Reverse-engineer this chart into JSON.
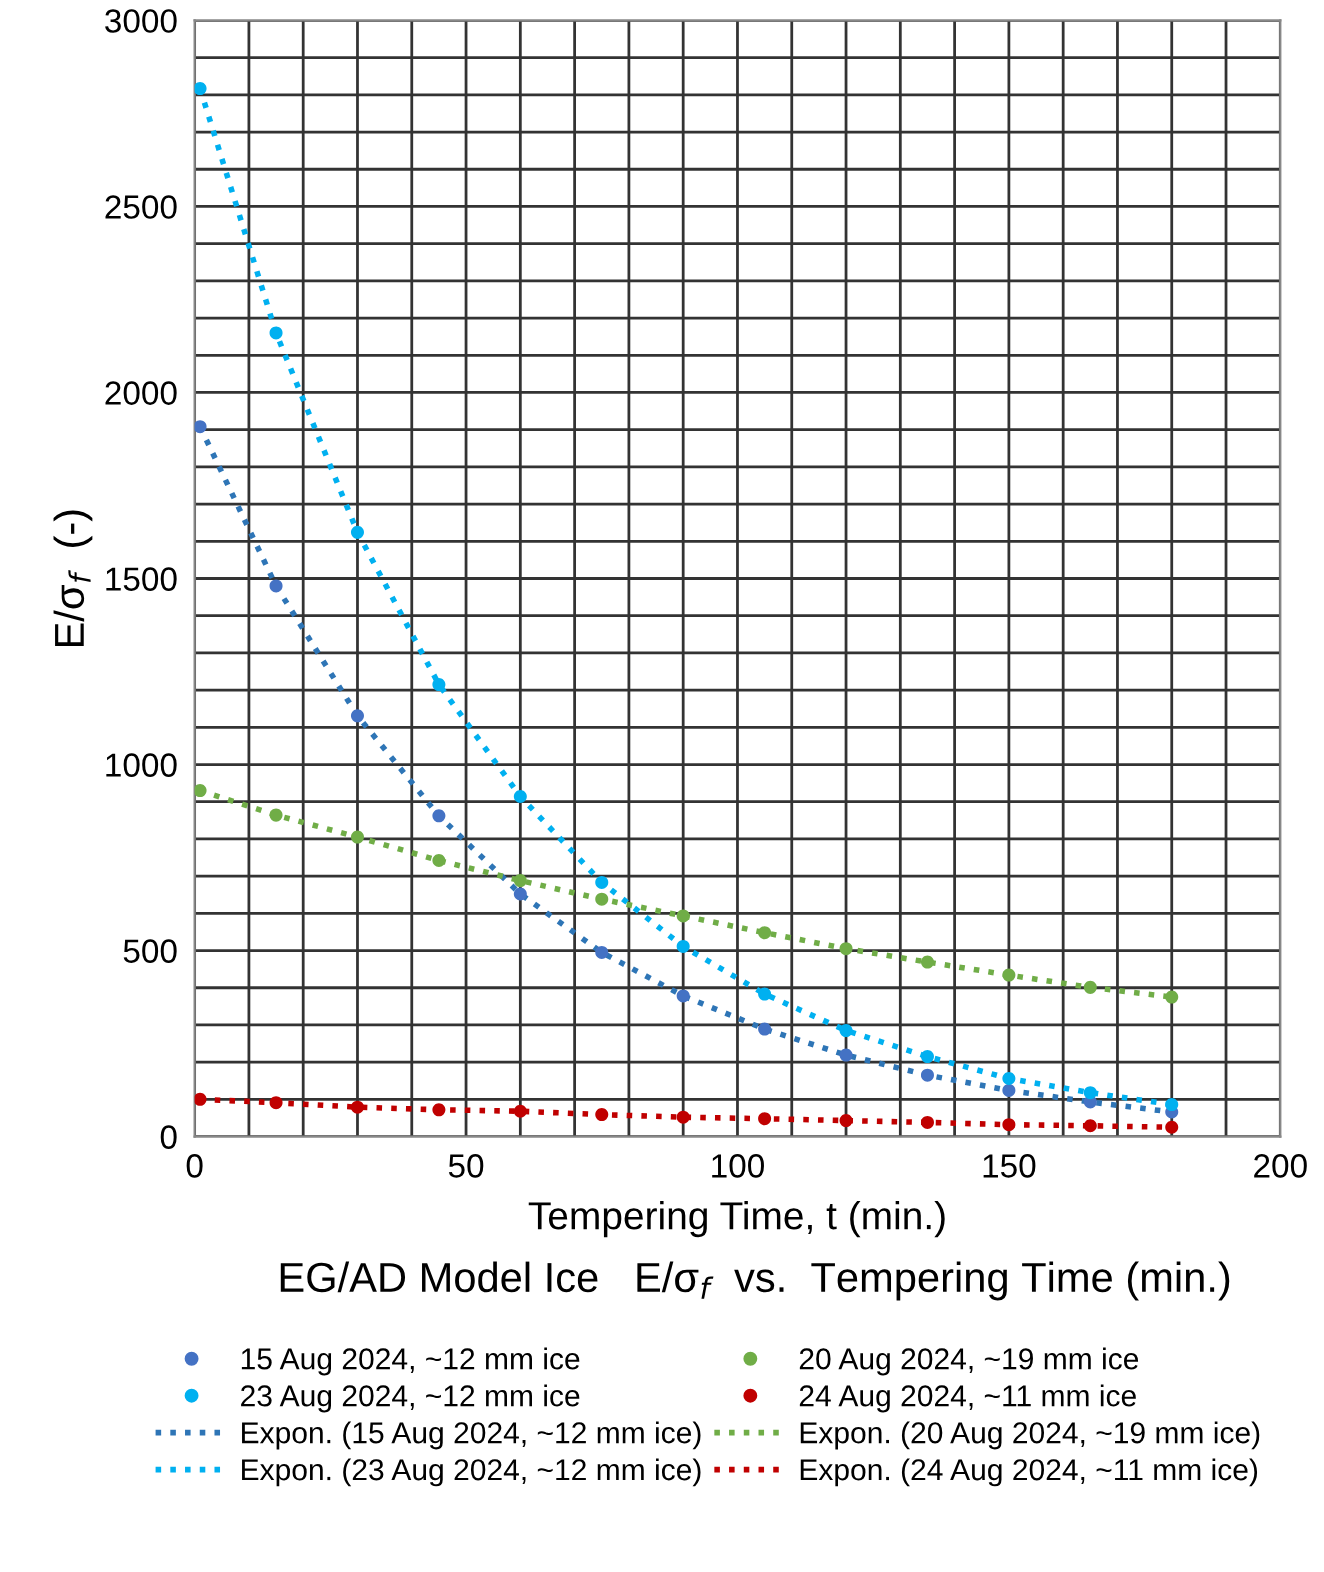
{
  "chart_data": {
    "type": "scatter",
    "title": "EG/AD Model Ice   E/σ$_{f}$  vs.  Tempering Time (min.)",
    "xlabel": "Tempering Time, t (min.)",
    "ylabel": "E/σ$_{f}$  (-)",
    "x": [
      1,
      15,
      30,
      45,
      60,
      75,
      90,
      105,
      120,
      135,
      150,
      165,
      180
    ],
    "series": [
      {
        "name": "15 Aug 2024, ~12 mm ice",
        "color": "#4472c4",
        "values": [
          1908,
          1480,
          1131,
          862,
          652,
          495,
          378,
          289,
          219,
          165,
          124,
          93,
          66
        ]
      },
      {
        "name": "23 Aug 2024, ~12 mm ice",
        "color": "#00b0f0",
        "values": [
          2817,
          2160,
          1624,
          1215,
          914,
          683,
          511,
          383,
          285,
          215,
          156,
          118,
          86
        ]
      },
      {
        "name": "Expon. (15 Aug 2024, ~12 mm ice)",
        "type": "line",
        "line_style": "dotted",
        "marker": "none",
        "color": "#2e75b6",
        "x": [
          1,
          15,
          30,
          45,
          60,
          75,
          90,
          105,
          120,
          135,
          150,
          165,
          180
        ],
        "values": [
          1908,
          1480,
          1131,
          862,
          652,
          495,
          378,
          289,
          219,
          165,
          124,
          93,
          66
        ]
      },
      {
        "name": "Expon. (23 Aug 2024, ~12 mm ice)",
        "type": "line",
        "line_style": "dotted",
        "marker": "none",
        "color": "#00b0f0",
        "x": [
          1,
          15,
          30,
          45,
          60,
          75,
          90,
          105,
          120,
          135,
          150,
          165,
          180
        ],
        "values": [
          2817,
          2160,
          1624,
          1215,
          914,
          683,
          511,
          383,
          285,
          215,
          156,
          118,
          86
        ]
      },
      {
        "name": "20 Aug 2024, ~19 mm ice",
        "color": "#70ad47",
        "values": [
          930,
          864,
          805,
          742,
          688,
          638,
          593,
          548,
          505,
          469,
          434,
          401,
          375
        ]
      },
      {
        "name": "24 Aug 2024, ~11 mm ice",
        "color": "#c00000",
        "values": [
          100,
          91,
          79,
          72,
          68,
          59,
          52,
          48,
          43,
          38,
          32,
          29,
          25
        ]
      },
      {
        "name": "Expon. (20 Aug 2024, ~19 mm ice)",
        "type": "line",
        "line_style": "dotted",
        "marker": "none",
        "color": "#70ad47",
        "x": [
          1,
          15,
          30,
          45,
          60,
          75,
          90,
          105,
          120,
          135,
          150,
          165,
          180
        ],
        "values": [
          930,
          864,
          805,
          742,
          688,
          638,
          593,
          548,
          505,
          469,
          434,
          401,
          375
        ]
      },
      {
        "name": "Expon. (24 Aug 2024, ~11 mm ice)",
        "type": "line",
        "line_style": "dotted",
        "marker": "none",
        "color": "#c00000",
        "x": [
          1,
          15,
          30,
          45,
          60,
          75,
          90,
          105,
          120,
          135,
          150,
          165,
          180
        ],
        "values": [
          100,
          91,
          79,
          72,
          68,
          59,
          52,
          48,
          43,
          38,
          32,
          29,
          25
        ]
      }
    ],
    "marker": "circle",
    "xlim": [
      0,
      200
    ],
    "ylim": [
      0,
      3000
    ],
    "xticks": [
      0,
      {
        "value": 10,
        "label": null
      },
      {
        "value": 20,
        "label": null
      },
      {
        "value": 30,
        "label": null
      },
      {
        "value": 40,
        "label": null
      },
      50,
      {
        "value": 60,
        "label": null
      },
      {
        "value": 70,
        "label": null
      },
      {
        "value": 80,
        "label": null
      },
      {
        "value": 90,
        "label": null
      },
      100,
      {
        "value": 110,
        "label": null
      },
      {
        "value": 120,
        "label": null
      },
      {
        "value": 130,
        "label": null
      },
      {
        "value": 140,
        "label": null
      },
      150,
      {
        "value": 160,
        "label": null
      },
      {
        "value": 170,
        "label": null
      },
      {
        "value": 180,
        "label": null
      },
      {
        "value": 190,
        "label": null
      },
      200
    ],
    "yticks": [
      0,
      {
        "value": 100,
        "label": null
      },
      {
        "value": 200,
        "label": null
      },
      {
        "value": 300,
        "label": null
      },
      {
        "value": 400,
        "label": null
      },
      500,
      {
        "value": 600,
        "label": null
      },
      {
        "value": 700,
        "label": null
      },
      {
        "value": 800,
        "label": null
      },
      {
        "value": 900,
        "label": null
      },
      1000,
      {
        "value": 1100,
        "label": null
      },
      {
        "value": 1200,
        "label": null
      },
      {
        "value": 1300,
        "label": null
      },
      {
        "value": 1400,
        "label": null
      },
      1500,
      {
        "value": 1600,
        "label": null
      },
      {
        "value": 1700,
        "label": null
      },
      {
        "value": 1800,
        "label": null
      },
      {
        "value": 1900,
        "label": null
      },
      2000,
      {
        "value": 2100,
        "label": null
      },
      {
        "value": 2200,
        "label": null
      },
      {
        "value": 2300,
        "label": null
      },
      {
        "value": 2400,
        "label": null
      },
      2500,
      {
        "value": 2600,
        "label": null
      },
      {
        "value": 2700,
        "label": null
      },
      {
        "value": 2800,
        "label": null
      },
      {
        "value": 2900,
        "label": null
      },
      3000
    ],
    "grid": true,
    "legend": "bottom"
  }
}
